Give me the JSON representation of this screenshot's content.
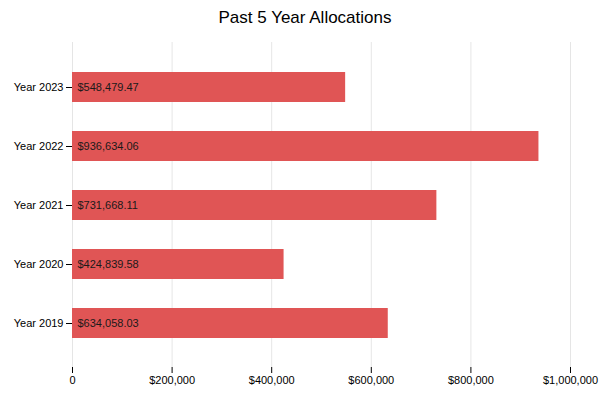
{
  "chart_data": {
    "type": "bar",
    "orientation": "horizontal",
    "title": "Past 5 Year Allocations",
    "categories": [
      "Year 2023",
      "Year 2022",
      "Year 2021",
      "Year 2020",
      "Year 2019"
    ],
    "values": [
      548479.47,
      936634.06,
      731668.11,
      424839.58,
      634058.03
    ],
    "value_labels": [
      "$548,479.47",
      "$936,634.06",
      "$731,668.11",
      "$424,839.58",
      "$634,058.03"
    ],
    "data_labels": true,
    "color": "#e05555",
    "xlim": [
      0,
      1000000
    ],
    "xticks": [
      0,
      {
        "value": 200000,
        "label": "$200,000"
      },
      {
        "value": 400000,
        "label": "$400,000"
      },
      {
        "value": 600000,
        "label": "$600,000"
      },
      {
        "value": 800000,
        "label": "$800,000"
      },
      {
        "value": 1000000,
        "label": "$1,000,000"
      }
    ],
    "grid": true
  }
}
